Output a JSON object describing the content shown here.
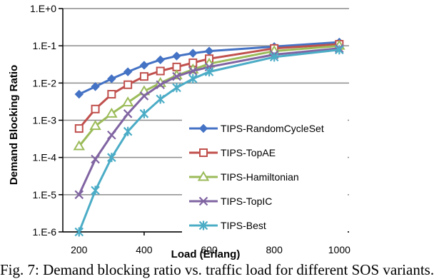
{
  "chart_data": {
    "type": "line",
    "xlabel": "Load (Erlang)",
    "ylabel": "Demand Blocking Ratio",
    "y_scale": "log",
    "ylim": [
      1e-06,
      1
    ],
    "xlim": [
      150,
      1030
    ],
    "grid": "horizontal",
    "legend_position": "bottom-right",
    "x_ticks": [
      200,
      400,
      600,
      800,
      1000
    ],
    "x_tick_labels": [
      "200",
      "400",
      "600",
      "800",
      "1000"
    ],
    "y_ticks": [
      1e-06,
      1e-05,
      0.0001,
      0.001,
      0.01,
      0.1,
      1
    ],
    "y_tick_labels": [
      "1.E-6",
      "1.E-5",
      "1.E-4",
      "1.E-3",
      "1.E-2",
      "1.E-1",
      "1.E+0"
    ],
    "x": [
      200,
      250,
      300,
      350,
      400,
      450,
      500,
      550,
      600,
      800,
      1000
    ],
    "series": [
      {
        "name": "TIPS-RandomCycleSet",
        "color": "#4472C4",
        "marker": "diamond",
        "values": [
          0.005,
          0.008,
          0.013,
          0.02,
          0.03,
          0.042,
          0.053,
          0.063,
          0.072,
          0.095,
          0.125
        ]
      },
      {
        "name": "TIPS-TopAE",
        "color": "#C0504D",
        "marker": "square",
        "values": [
          0.0006,
          0.002,
          0.005,
          0.009,
          0.015,
          0.021,
          0.027,
          0.035,
          0.045,
          0.085,
          0.11
        ]
      },
      {
        "name": "TIPS-Hamiltonian",
        "color": "#9BBB59",
        "marker": "triangle",
        "values": [
          0.0002,
          0.0007,
          0.0015,
          0.003,
          0.006,
          0.01,
          0.016,
          0.023,
          0.033,
          0.072,
          0.1
        ]
      },
      {
        "name": "TIPS-TopIC",
        "color": "#8064A2",
        "marker": "x",
        "values": [
          1e-05,
          9e-05,
          0.0004,
          0.0015,
          0.0045,
          0.009,
          0.015,
          0.021,
          0.027,
          0.058,
          0.085
        ]
      },
      {
        "name": "TIPS-Best",
        "color": "#4BACC6",
        "marker": "star",
        "values": [
          1e-06,
          1.3e-05,
          0.0001,
          0.0005,
          0.0015,
          0.0037,
          0.0075,
          0.013,
          0.02,
          0.05,
          0.078
        ]
      }
    ]
  },
  "caption": "Fig. 7: Demand blocking ratio vs. traffic load for different SOS variants."
}
